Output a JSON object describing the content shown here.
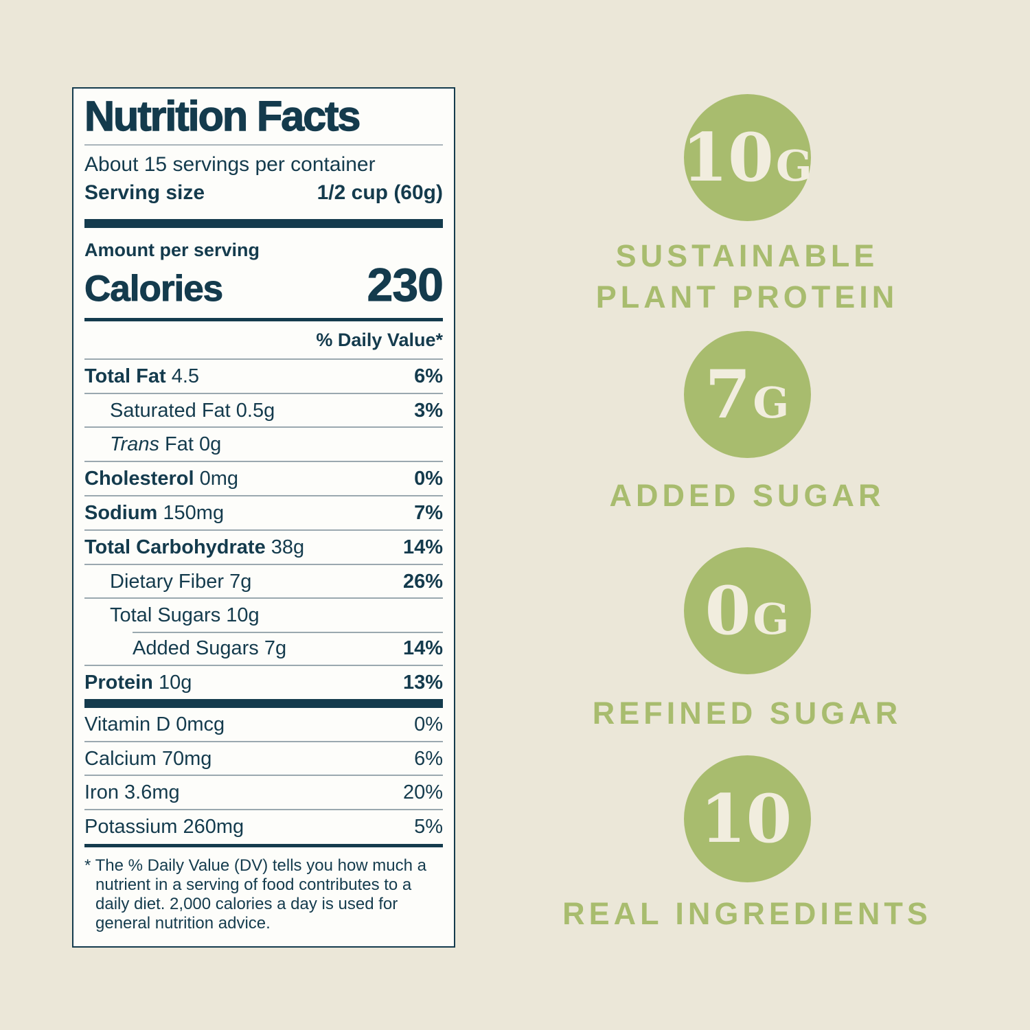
{
  "colors": {
    "background": "#ebe7d8",
    "navy": "#143b4d",
    "green": "#a8bc6e",
    "panel_white": "#fdfdfa",
    "cream_text": "#f1edde",
    "hairline": "#9aa8af"
  },
  "nutrition_label": {
    "title": "Nutrition Facts",
    "servings_per_container": "About 15 servings per container",
    "serving_size_label": "Serving size",
    "serving_size_value": "1/2 cup (60g)",
    "amount_per_serving": "Amount per serving",
    "calories_label": "Calories",
    "calories_value": "230",
    "daily_value_header": "% Daily Value*",
    "rows": [
      {
        "label": "Total Fat",
        "amount": "4.5",
        "dv": "6%"
      },
      {
        "label": "Saturated Fat",
        "amount": "0.5g",
        "dv": "3%"
      },
      {
        "label_italic": "Trans",
        "label": "Fat",
        "amount": "0g",
        "dv": ""
      },
      {
        "label": "Cholesterol",
        "amount": "0mg",
        "dv": "0%"
      },
      {
        "label": "Sodium",
        "amount": "150mg",
        "dv": "7%"
      },
      {
        "label": "Total Carbohydrate",
        "amount": "38g",
        "dv": "14%"
      },
      {
        "label": "Dietary Fiber",
        "amount": "7g",
        "dv": "26%"
      },
      {
        "label": "Total Sugars",
        "amount": "10g",
        "dv": ""
      },
      {
        "label": "Added Sugars",
        "amount": "7g",
        "dv": "14%"
      },
      {
        "label": "Protein",
        "amount": "10g",
        "dv": "13%"
      }
    ],
    "micronutrients": [
      {
        "label": "Vitamin D",
        "amount": "0mcg",
        "dv": "0%"
      },
      {
        "label": "Calcium",
        "amount": "70mg",
        "dv": "6%"
      },
      {
        "label": "Iron",
        "amount": "3.6mg",
        "dv": "20%"
      },
      {
        "label": "Potassium",
        "amount": "260mg",
        "dv": "5%"
      }
    ],
    "footnote": "* The % Daily Value (DV) tells you how much a nutrient in a serving of food contributes to a daily diet. 2,000 calories a day is used for general nutrition advice."
  },
  "highlights": [
    {
      "circle_value": "10",
      "circle_unit": "G",
      "caption": "SUSTAINABLE PLANT PROTEIN"
    },
    {
      "circle_value": "7",
      "circle_unit": "G",
      "caption": "ADDED SUGAR"
    },
    {
      "circle_value": "0",
      "circle_unit": "G",
      "caption": "REFINED SUGAR"
    },
    {
      "circle_value": "10",
      "circle_unit": "",
      "caption": "REAL INGREDIENTS"
    }
  ]
}
